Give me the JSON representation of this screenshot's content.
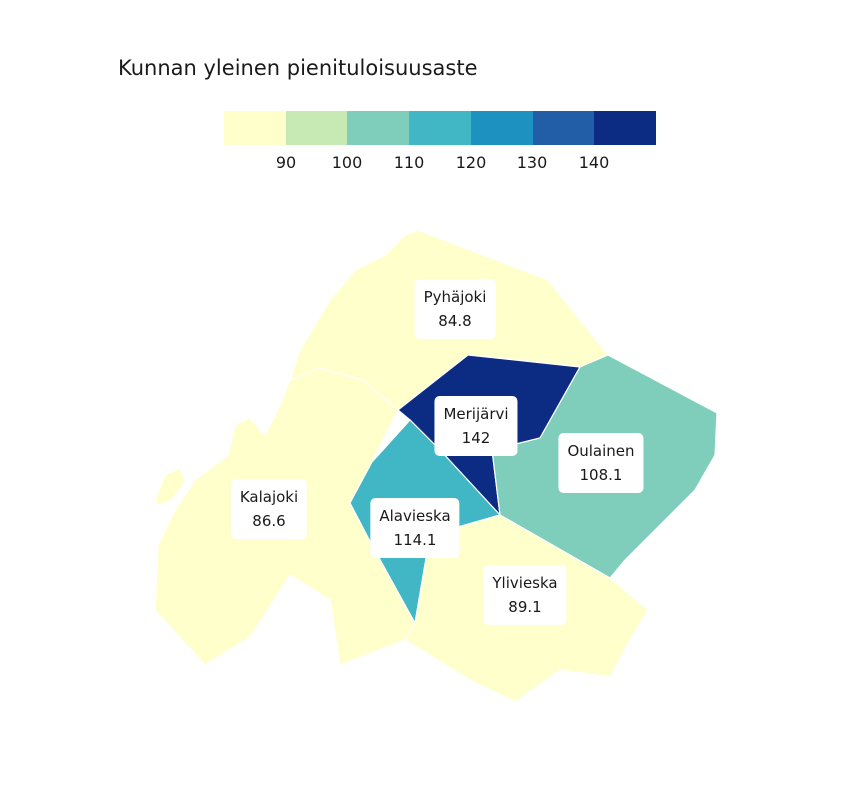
{
  "title": "Kunnan yleinen pienituloisuusaste",
  "legend": {
    "colors": [
      "#ffffcc",
      "#c7e9b4",
      "#7fcdbb",
      "#41b6c4",
      "#1d91c0",
      "#225ea8",
      "#0c2c84"
    ],
    "ticks": [
      "90",
      "100",
      "110",
      "120",
      "130",
      "140"
    ]
  },
  "municipalities": [
    {
      "name": "Pyhäjoki",
      "value": "84.8",
      "color": "#ffffcc"
    },
    {
      "name": "Kalajoki",
      "value": "86.6",
      "color": "#ffffcc"
    },
    {
      "name": "Merijärvi",
      "value": "142",
      "color": "#0c2c84"
    },
    {
      "name": "Oulainen",
      "value": "108.1",
      "color": "#7fcdbb"
    },
    {
      "name": "Alavieska",
      "value": "114.1",
      "color": "#41b6c4"
    },
    {
      "name": "Ylivieska",
      "value": "89.1",
      "color": "#ffffcc"
    }
  ]
}
